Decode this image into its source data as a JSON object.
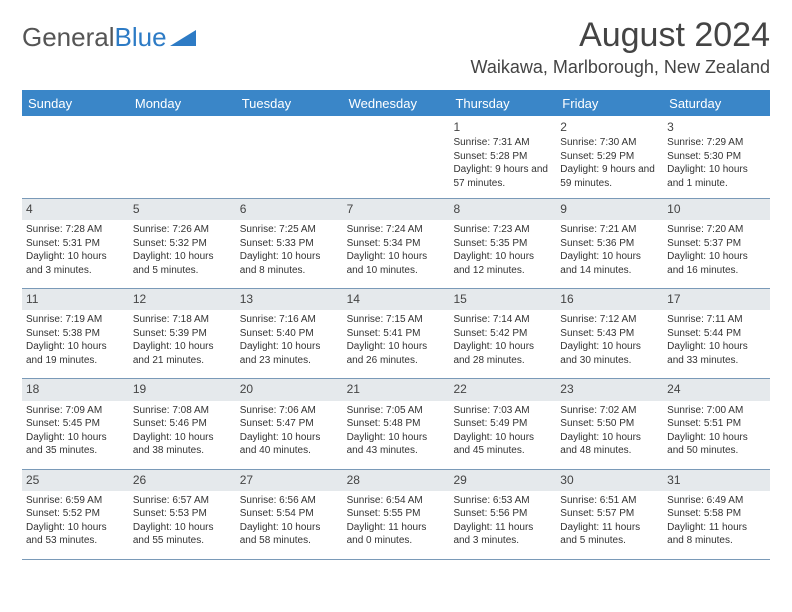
{
  "logo": {
    "left": "General",
    "right": "Blue"
  },
  "title": {
    "month": "August 2024",
    "location": "Waikawa, Marlborough, New Zealand"
  },
  "calendar": {
    "type": "table",
    "header_bg": "#3a86c8",
    "header_fg": "#ffffff",
    "numrow_bg": "#e5e9ec",
    "body_fontsize": 10,
    "day_headers": [
      "Sunday",
      "Monday",
      "Tuesday",
      "Wednesday",
      "Thursday",
      "Friday",
      "Saturday"
    ],
    "weeks": [
      [
        {
          "n": "",
          "t": ""
        },
        {
          "n": "",
          "t": ""
        },
        {
          "n": "",
          "t": ""
        },
        {
          "n": "",
          "t": ""
        },
        {
          "n": "1",
          "t": "Sunrise: 7:31 AM\nSunset: 5:28 PM\nDaylight: 9 hours and 57 minutes."
        },
        {
          "n": "2",
          "t": "Sunrise: 7:30 AM\nSunset: 5:29 PM\nDaylight: 9 hours and 59 minutes."
        },
        {
          "n": "3",
          "t": "Sunrise: 7:29 AM\nSunset: 5:30 PM\nDaylight: 10 hours and 1 minute."
        }
      ],
      [
        {
          "n": "4",
          "t": "Sunrise: 7:28 AM\nSunset: 5:31 PM\nDaylight: 10 hours and 3 minutes."
        },
        {
          "n": "5",
          "t": "Sunrise: 7:26 AM\nSunset: 5:32 PM\nDaylight: 10 hours and 5 minutes."
        },
        {
          "n": "6",
          "t": "Sunrise: 7:25 AM\nSunset: 5:33 PM\nDaylight: 10 hours and 8 minutes."
        },
        {
          "n": "7",
          "t": "Sunrise: 7:24 AM\nSunset: 5:34 PM\nDaylight: 10 hours and 10 minutes."
        },
        {
          "n": "8",
          "t": "Sunrise: 7:23 AM\nSunset: 5:35 PM\nDaylight: 10 hours and 12 minutes."
        },
        {
          "n": "9",
          "t": "Sunrise: 7:21 AM\nSunset: 5:36 PM\nDaylight: 10 hours and 14 minutes."
        },
        {
          "n": "10",
          "t": "Sunrise: 7:20 AM\nSunset: 5:37 PM\nDaylight: 10 hours and 16 minutes."
        }
      ],
      [
        {
          "n": "11",
          "t": "Sunrise: 7:19 AM\nSunset: 5:38 PM\nDaylight: 10 hours and 19 minutes."
        },
        {
          "n": "12",
          "t": "Sunrise: 7:18 AM\nSunset: 5:39 PM\nDaylight: 10 hours and 21 minutes."
        },
        {
          "n": "13",
          "t": "Sunrise: 7:16 AM\nSunset: 5:40 PM\nDaylight: 10 hours and 23 minutes."
        },
        {
          "n": "14",
          "t": "Sunrise: 7:15 AM\nSunset: 5:41 PM\nDaylight: 10 hours and 26 minutes."
        },
        {
          "n": "15",
          "t": "Sunrise: 7:14 AM\nSunset: 5:42 PM\nDaylight: 10 hours and 28 minutes."
        },
        {
          "n": "16",
          "t": "Sunrise: 7:12 AM\nSunset: 5:43 PM\nDaylight: 10 hours and 30 minutes."
        },
        {
          "n": "17",
          "t": "Sunrise: 7:11 AM\nSunset: 5:44 PM\nDaylight: 10 hours and 33 minutes."
        }
      ],
      [
        {
          "n": "18",
          "t": "Sunrise: 7:09 AM\nSunset: 5:45 PM\nDaylight: 10 hours and 35 minutes."
        },
        {
          "n": "19",
          "t": "Sunrise: 7:08 AM\nSunset: 5:46 PM\nDaylight: 10 hours and 38 minutes."
        },
        {
          "n": "20",
          "t": "Sunrise: 7:06 AM\nSunset: 5:47 PM\nDaylight: 10 hours and 40 minutes."
        },
        {
          "n": "21",
          "t": "Sunrise: 7:05 AM\nSunset: 5:48 PM\nDaylight: 10 hours and 43 minutes."
        },
        {
          "n": "22",
          "t": "Sunrise: 7:03 AM\nSunset: 5:49 PM\nDaylight: 10 hours and 45 minutes."
        },
        {
          "n": "23",
          "t": "Sunrise: 7:02 AM\nSunset: 5:50 PM\nDaylight: 10 hours and 48 minutes."
        },
        {
          "n": "24",
          "t": "Sunrise: 7:00 AM\nSunset: 5:51 PM\nDaylight: 10 hours and 50 minutes."
        }
      ],
      [
        {
          "n": "25",
          "t": "Sunrise: 6:59 AM\nSunset: 5:52 PM\nDaylight: 10 hours and 53 minutes."
        },
        {
          "n": "26",
          "t": "Sunrise: 6:57 AM\nSunset: 5:53 PM\nDaylight: 10 hours and 55 minutes."
        },
        {
          "n": "27",
          "t": "Sunrise: 6:56 AM\nSunset: 5:54 PM\nDaylight: 10 hours and 58 minutes."
        },
        {
          "n": "28",
          "t": "Sunrise: 6:54 AM\nSunset: 5:55 PM\nDaylight: 11 hours and 0 minutes."
        },
        {
          "n": "29",
          "t": "Sunrise: 6:53 AM\nSunset: 5:56 PM\nDaylight: 11 hours and 3 minutes."
        },
        {
          "n": "30",
          "t": "Sunrise: 6:51 AM\nSunset: 5:57 PM\nDaylight: 11 hours and 5 minutes."
        },
        {
          "n": "31",
          "t": "Sunrise: 6:49 AM\nSunset: 5:58 PM\nDaylight: 11 hours and 8 minutes."
        }
      ]
    ]
  }
}
